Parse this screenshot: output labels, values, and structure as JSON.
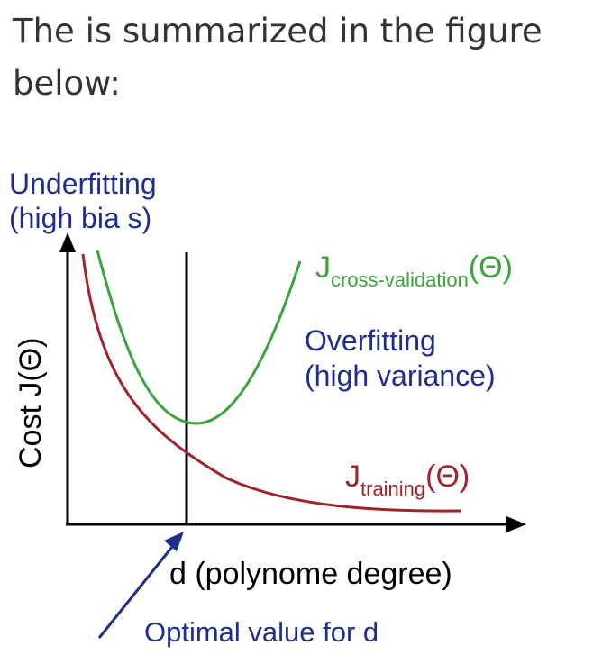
{
  "intro": {
    "line1": "The is summarized in the figure",
    "line2": "below:"
  },
  "figure": {
    "underfit_line1": "Underfitting",
    "underfit_line2": "(high bia s)",
    "overfit_line1": "Overfitting",
    "overfit_line2": "(high variance)",
    "cv_J": "J",
    "cv_sub": "cross-validation",
    "cv_theta": "(Θ)",
    "train_J": "J",
    "train_sub": "training",
    "train_theta": "(Θ)",
    "ylabel": "Cost J(Θ)",
    "xlabel": "d (polynome degree)",
    "optimal_label": "Optimal value for d"
  },
  "colors": {
    "text": "#333333",
    "blue": "#1f2d8c",
    "green": "#3aa33a",
    "red": "#a0242a",
    "axis": "#000000"
  }
}
